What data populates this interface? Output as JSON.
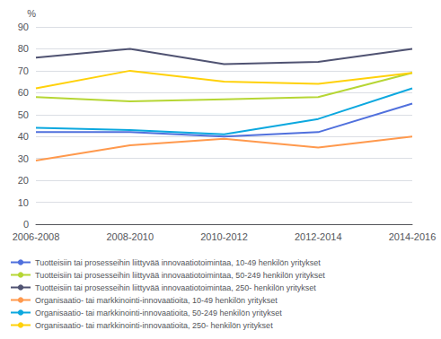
{
  "chart_data": {
    "type": "line",
    "ylabel": "%",
    "categories": [
      "2006-2008",
      "2008-2010",
      "2010-2012",
      "2012-2014",
      "2014-2016"
    ],
    "series": [
      {
        "name": "Tuotteisiin tai prosesseihin liittyvää innovaatiotoimintaa, 10-49 henkilön yritykset",
        "values": [
          42,
          42,
          40,
          42,
          55
        ]
      },
      {
        "name": "Tuotteisiin tai prosesseihin liittyvää innovaatiotoimintaa, 50-249 henkilön yritykset",
        "values": [
          58,
          56,
          57,
          58,
          69
        ]
      },
      {
        "name": "Tuotteisiin tai prosesseihin liittyvää innovaatiotoimintaa, 250- henkilön yritykset",
        "values": [
          76,
          80,
          73,
          74,
          80
        ]
      },
      {
        "name": "Organisaatio- tai markkinointi-innovaatioita, 10-49 henkilön yritykset",
        "values": [
          29,
          36,
          39,
          35,
          40
        ]
      },
      {
        "name": "Organisaatio- tai markkinointi-innovaatioita, 50-249 henkilön yritykset",
        "values": [
          44,
          43,
          41,
          48,
          62
        ]
      },
      {
        "name": "Organisaatio- tai markkinointi-innovaatioita, 250- henkilön yritykset",
        "values": [
          62,
          70,
          65,
          64,
          69
        ]
      }
    ],
    "ylim": [
      0,
      90
    ],
    "yticks": [
      0,
      10,
      20,
      30,
      40,
      50,
      60,
      70,
      80,
      90
    ],
    "grid": true,
    "legend": "bottom"
  }
}
